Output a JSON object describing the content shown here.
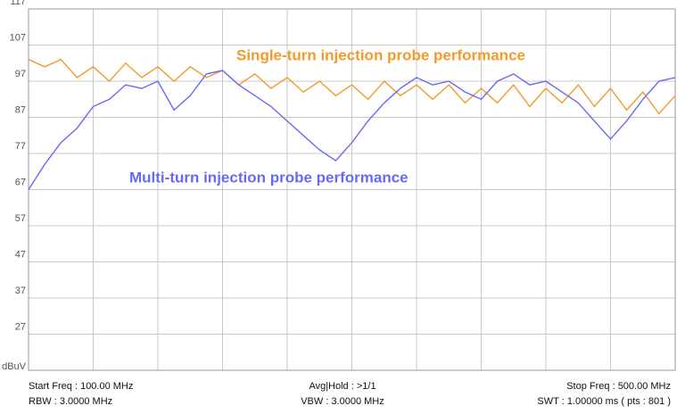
{
  "chart_data": {
    "type": "line",
    "x": [
      100,
      110,
      120,
      130,
      140,
      150,
      160,
      170,
      180,
      190,
      200,
      210,
      220,
      230,
      240,
      250,
      260,
      270,
      280,
      290,
      300,
      310,
      320,
      330,
      340,
      350,
      360,
      370,
      380,
      390,
      400,
      410,
      420,
      430,
      440,
      450,
      460,
      470,
      480,
      490,
      500
    ],
    "xlim": [
      100,
      500
    ],
    "xticks": [
      100,
      140,
      180,
      220,
      260,
      300,
      340,
      380,
      420,
      460,
      500
    ],
    "ylim": [
      17,
      117
    ],
    "yticks": [
      {
        "value": 17,
        "label": "dBuV"
      },
      27,
      37,
      47,
      57,
      67,
      77,
      87,
      97,
      107,
      117
    ],
    "grid": true,
    "series": [
      {
        "name": "Single-turn injection probe performance",
        "color": "#f39a2a",
        "values": [
          103,
          101,
          103,
          98,
          101,
          97,
          102,
          98,
          101,
          97,
          101,
          98,
          100,
          96,
          99,
          95,
          98,
          94,
          97,
          93,
          96,
          92,
          97,
          93,
          96,
          92,
          96,
          91,
          95,
          91,
          96,
          90,
          95,
          91,
          96,
          90,
          95,
          89,
          94,
          88,
          93
        ]
      },
      {
        "name": "Multi-turn injection probe performance",
        "color": "#6a6af0",
        "values": [
          67,
          74,
          80,
          84,
          90,
          92,
          96,
          95,
          97,
          89,
          93,
          99,
          100,
          96,
          93,
          90,
          86,
          82,
          78,
          75,
          80,
          86,
          91,
          95,
          98,
          96,
          97,
          94,
          92,
          97,
          99,
          96,
          97,
          94,
          91,
          86,
          81,
          86,
          92,
          97,
          98
        ]
      }
    ],
    "footer": [
      [
        "Start Freq : 100.00 MHz",
        "Avg|Hold : >1/1",
        "Stop Freq : 500.00 MHz"
      ],
      [
        "RBW : 3.0000 MHz",
        "VBW : 3.0000 MHz",
        "SWT : 1.00000 ms ( pts : 801 )"
      ]
    ]
  }
}
